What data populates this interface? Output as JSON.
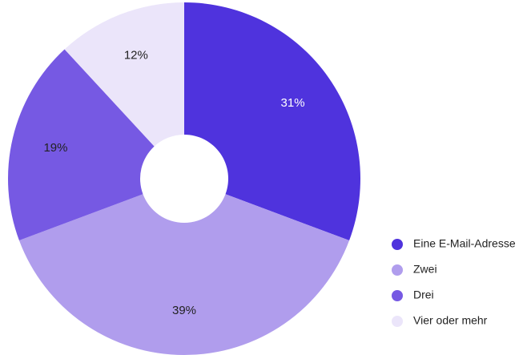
{
  "chart_data": {
    "type": "pie",
    "hole": true,
    "categories": [
      "Eine E-Mail-Adresse",
      "Zwei",
      "Drei",
      "Vier oder mehr"
    ],
    "values": [
      31,
      39,
      19,
      12
    ],
    "value_labels": [
      "31%",
      "39%",
      "19%",
      "12%"
    ],
    "colors": [
      "#4f33dd",
      "#b09ded",
      "#7659e3",
      "#ebe5fa"
    ],
    "label_colors": [
      "#ffffff",
      "#222222",
      "#222222",
      "#222222"
    ],
    "legend": "right"
  }
}
